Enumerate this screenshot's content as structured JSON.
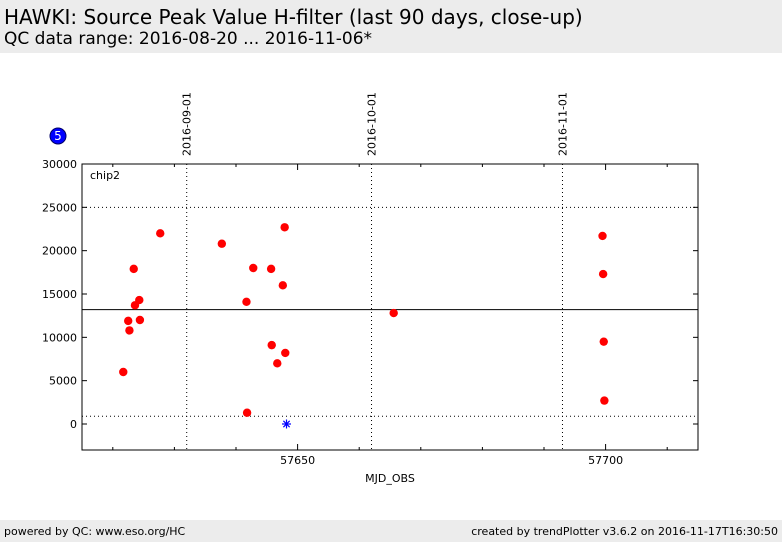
{
  "header": {
    "title": "HAWKI: Source Peak Value H-filter (last 90 days, close-up)",
    "subtitle": "QC data range: 2016-08-20 ... 2016-11-06*"
  },
  "footer": {
    "left": "powered by QC: www.eso.org/HC",
    "right": "created by trendPlotter v3.6.2 on 2016-11-17T16:30:50"
  },
  "badge": {
    "label": "5",
    "color": "#0000ff"
  },
  "chart_data": {
    "type": "scatter",
    "panel_label": "chip2",
    "xlabel": "MJD_OBS",
    "ylabel": "",
    "xlim": [
      57615,
      57715
    ],
    "ylim": [
      -3000,
      30000
    ],
    "x_ticks": [
      57650,
      57700
    ],
    "y_ticks": [
      0,
      5000,
      10000,
      15000,
      20000,
      25000,
      30000
    ],
    "date_marks": [
      {
        "label": "2016-09-01",
        "mjd": 57632
      },
      {
        "label": "2016-10-01",
        "mjd": 57662
      },
      {
        "label": "2016-11-01",
        "mjd": 57693
      }
    ],
    "reference_line": 13200,
    "threshold_lines": [
      25000,
      900
    ],
    "grid": false,
    "point_color": "#ff0000",
    "outlier_color": "#0000ff",
    "points": [
      {
        "x": 57621.7,
        "y": 6000
      },
      {
        "x": 57622.5,
        "y": 11900
      },
      {
        "x": 57622.7,
        "y": 10800
      },
      {
        "x": 57623.4,
        "y": 17900
      },
      {
        "x": 57623.6,
        "y": 13700
      },
      {
        "x": 57624.3,
        "y": 14300
      },
      {
        "x": 57624.4,
        "y": 12000
      },
      {
        "x": 57627.7,
        "y": 22000
      },
      {
        "x": 57637.7,
        "y": 20800
      },
      {
        "x": 57641.7,
        "y": 14100
      },
      {
        "x": 57641.8,
        "y": 1300
      },
      {
        "x": 57642.8,
        "y": 18000
      },
      {
        "x": 57645.7,
        "y": 17900
      },
      {
        "x": 57645.8,
        "y": 9100
      },
      {
        "x": 57646.7,
        "y": 7000
      },
      {
        "x": 57647.6,
        "y": 16000
      },
      {
        "x": 57647.9,
        "y": 22700
      },
      {
        "x": 57648.0,
        "y": 8200
      },
      {
        "x": 57665.6,
        "y": 12800
      },
      {
        "x": 57699.5,
        "y": 21700
      },
      {
        "x": 57699.6,
        "y": 17300
      },
      {
        "x": 57699.7,
        "y": 9500
      },
      {
        "x": 57699.8,
        "y": 2700
      }
    ],
    "outliers": [
      {
        "x": 57648.2,
        "y": 0
      }
    ]
  }
}
